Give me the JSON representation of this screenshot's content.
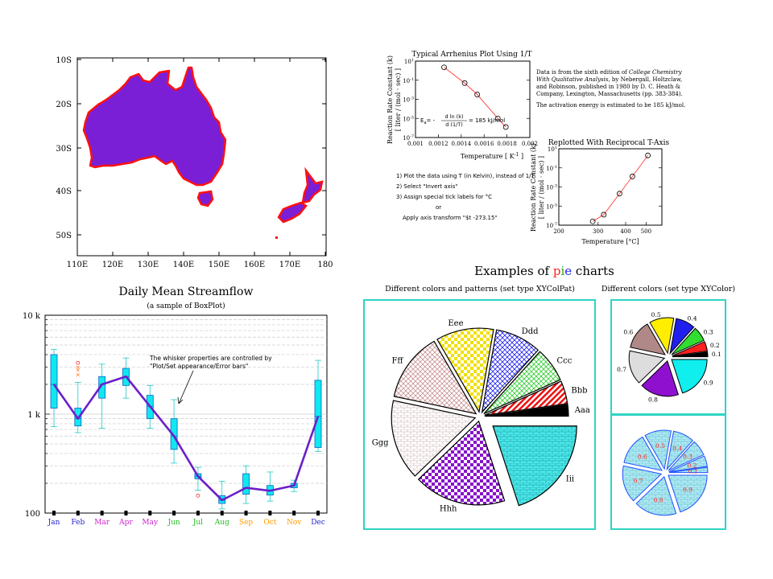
{
  "map": {
    "lat_labels": [
      "10S",
      "20S",
      "30S",
      "40S",
      "50S"
    ],
    "lon_labels": [
      "110E",
      "120E",
      "130E",
      "140E",
      "150E",
      "160E",
      "170E",
      "180"
    ],
    "land_color": "#7a1fd6",
    "coast_color": "#ff1010"
  },
  "arrhenius": {
    "title": "Typical Arrhenius Plot Using 1/T",
    "ylabel1": "Reaction Rate Constant (k)",
    "ylabel2": "[ liter / (mol · sec) ]",
    "xlabel": "Temperature [ K",
    "xlabel_sup": "-1",
    "xlabel_end": " ]",
    "x_ticks": [
      "0.001",
      "0.0012",
      "0.0014",
      "0.0016",
      "0.0018",
      "0.002"
    ],
    "ea_formula_left": "E",
    "ea_formula_sub": "a",
    "ea_formula_eq": "= -",
    "ea_num": "d ln (k)",
    "ea_den": "d (1/T)",
    "ea_value": "= 185 kJ/mol",
    "note1": "Data is from the sixth edition of ",
    "note1_italic": "College Chemistry",
    "note2_italic": "With Qualitative Analysis",
    "note2": ", by Nebergall, Holtzclaw,",
    "note3": "and Robinson, published in 1980 by D. C. Heath &",
    "note4": "Company, Lexington, Massachusetts (pp. 383-384).",
    "note5": "The activation energy is estimated to be 185 kJ/mol.",
    "steps": [
      "1) Plot the data using T (in Kelvin), instead of 1/T",
      "2) Select \"Invert axis\"",
      "3) Assign special tick labels for °C",
      "or",
      "Apply axis transform \"$t -273.15\""
    ]
  },
  "reciprocal": {
    "title": "Replotted With Reciprocal T-Axis",
    "ylabel1": "Reaction Rate Constant (k)",
    "ylabel2": "[ liter / (mol · sec) ]",
    "xlabel": "Temperature [°C]",
    "x_ticks": [
      "200",
      "300",
      "400",
      "500"
    ]
  },
  "streamflow": {
    "title": "Daily Mean Streamflow",
    "subtitle": "(a sample of BoxPlot)",
    "y_labels": [
      "10 k",
      "1 k",
      "100"
    ],
    "annotation1": "The whisker properties are controlled by",
    "annotation2": "\"Plot/Set appearance/Error bars\""
  },
  "pies": {
    "heading_pre": "Examples of ",
    "heading_p": "p",
    "heading_i": "i",
    "heading_e": "e",
    "heading_post": " charts",
    "left_title": "Different colors and patterns (set type XYColPat)",
    "right_title": "Different colors (set type XYColor)",
    "border_color": "#2fd4c4"
  },
  "chart_data": [
    {
      "type": "line",
      "title": "Typical Arrhenius Plot Using 1/T",
      "xlabel": "Temperature [ K-1 ]",
      "ylabel": "Reaction Rate Constant (k) [ liter / (mol · sec) ]",
      "xlim": [
        0.001,
        0.002
      ],
      "ylim_exp": [
        -7,
        1
      ],
      "y_log": true,
      "y_tick_exponents": [
        -7,
        -5,
        -3,
        -1,
        1
      ],
      "x": [
        0.00125,
        0.00143,
        0.00154,
        0.00172,
        0.00179
      ],
      "y_exp": [
        0.35,
        -1.3,
        -2.5,
        -5.0,
        -5.9
      ],
      "series": [
        {
          "name": "",
          "values": [
            0.35,
            -1.3,
            -2.5,
            -5.0,
            -5.9
          ]
        }
      ]
    },
    {
      "type": "line",
      "title": "Replotted With Reciprocal T-Axis",
      "xlabel": "Temperature [°C]",
      "x_log_reciprocal": true,
      "xlim": [
        200,
        600
      ],
      "ylim_exp": [
        -7,
        1
      ],
      "y_log": true,
      "y_tick_exponents": [
        -7,
        -5,
        -3,
        -1,
        1
      ],
      "x": [
        284,
        318,
        375,
        430,
        510
      ],
      "y_exp": [
        -6.6,
        -5.9,
        -3.7,
        -1.9,
        0.3
      ]
    },
    {
      "type": "box",
      "title": "Daily Mean Streamflow",
      "categories": [
        "Jan",
        "Feb",
        "Mar",
        "Apr",
        "May",
        "Jun",
        "Jul",
        "Aug",
        "Sep",
        "Oct",
        "Nov",
        "Dec"
      ],
      "category_colors": [
        "#2222cc",
        "#2222cc",
        "#cc22cc",
        "#cc22cc",
        "#cc22cc",
        "#22bb22",
        "#22bb22",
        "#22bb22",
        "#ff9900",
        "#ff9900",
        "#ff9900",
        "#2222cc"
      ],
      "y_log": true,
      "ylim": [
        100,
        10000
      ],
      "median": [
        2000,
        900,
        2000,
        2400,
        1200,
        600,
        235,
        135,
        180,
        168,
        190,
        950
      ],
      "q1": [
        1150,
        760,
        1450,
        1950,
        900,
        440,
        222,
        125,
        155,
        152,
        180,
        460
      ],
      "q3": [
        4000,
        1150,
        2400,
        2900,
        1550,
        900,
        250,
        150,
        250,
        190,
        200,
        2200
      ],
      "whisker_low": [
        750,
        650,
        720,
        1450,
        720,
        320,
        170,
        110,
        125,
        132,
        165,
        420
      ],
      "whisker_high": [
        4500,
        2100,
        3200,
        3700,
        1950,
        1400,
        290,
        210,
        300,
        260,
        215,
        3500
      ],
      "outliers": [
        [],
        [
          3300,
          3000,
          2800,
          2500
        ],
        [],
        [],
        [],
        [],
        [
          150
        ],
        [],
        [],
        [],
        [],
        []
      ]
    },
    {
      "type": "pie",
      "title": "Different colors and patterns (set type XYColPat)",
      "labels": [
        "Aaa",
        "Bbb",
        "Ccc",
        "Ddd",
        "Eee",
        "Fff",
        "Ggg",
        "Hhh",
        "Iii"
      ],
      "values": [
        1,
        2,
        3,
        4,
        5,
        6,
        7,
        8,
        9
      ],
      "colors": [
        "#000000",
        "#ff2020",
        "#30dd30",
        "#2020ee",
        "#ffee00",
        "#c08080",
        "#d0b8b8",
        "#9010d0",
        "#10e0e0"
      ],
      "explode_index": 8
    },
    {
      "type": "pie",
      "title": "Different colors (set type XYColor)",
      "labels": [
        "0.1",
        "0.2",
        "0.3",
        "0.4",
        "0.5",
        "0.6",
        "0.7",
        "0.8",
        "0.9"
      ],
      "values": [
        0.1,
        0.2,
        0.3,
        0.4,
        0.5,
        0.6,
        0.7,
        0.8,
        0.9
      ],
      "colors": [
        "#000000",
        "#ff2020",
        "#30dd30",
        "#2020ee",
        "#ffee00",
        "#b08888",
        "#dddddd",
        "#9010d0",
        "#10eeee"
      ]
    },
    {
      "type": "pie",
      "title": "",
      "labels": [
        "0.1",
        "0.2",
        "0.3",
        "0.4",
        "0.5",
        "0.6",
        "0.7",
        "0.8",
        "0.9"
      ],
      "values": [
        0.1,
        0.2,
        0.3,
        0.4,
        0.5,
        0.6,
        0.7,
        0.8,
        0.9
      ],
      "colors": [
        "#9fe8f0",
        "#9fe8f0",
        "#9fe8f0",
        "#9fe8f0",
        "#9fe8f0",
        "#9fe8f0",
        "#9fe8f0",
        "#9fe8f0",
        "#9fe8f0"
      ],
      "label_color": "#ff2020",
      "outline_color": "#2050ff"
    }
  ]
}
